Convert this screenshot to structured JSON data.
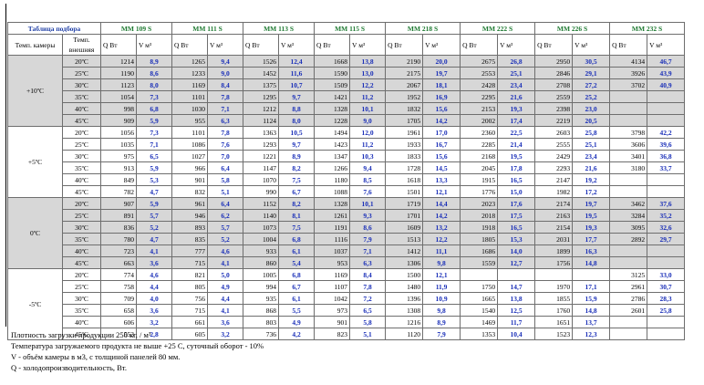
{
  "table": {
    "title": "Таблица подбора",
    "chamber_header": "Темп. камеры",
    "outside_header": "Темп. внешняя",
    "q_header": "Q Вт",
    "v_header": "V м³",
    "models": [
      "MM 109 S",
      "MM 111 S",
      "MM 113 S",
      "MM 115 S",
      "MM 218 S",
      "MM 222 S",
      "MM 226 S",
      "MM 232 S"
    ],
    "groups": [
      {
        "chamber": "+10ºC",
        "rows": [
          {
            "outside": "20ºC",
            "cells": [
              [
                "1214",
                "8,9"
              ],
              [
                "1265",
                "9,4"
              ],
              [
                "1526",
                "12,4"
              ],
              [
                "1668",
                "13,8"
              ],
              [
                "2190",
                "20,0"
              ],
              [
                "2675",
                "26,8"
              ],
              [
                "2950",
                "30,5"
              ],
              [
                "4134",
                "46,7"
              ]
            ]
          },
          {
            "outside": "25ºC",
            "cells": [
              [
                "1190",
                "8,6"
              ],
              [
                "1233",
                "9,0"
              ],
              [
                "1452",
                "11,6"
              ],
              [
                "1590",
                "13,0"
              ],
              [
                "2175",
                "19,7"
              ],
              [
                "2553",
                "25,1"
              ],
              [
                "2846",
                "29,1"
              ],
              [
                "3926",
                "43,9"
              ]
            ]
          },
          {
            "outside": "30ºC",
            "cells": [
              [
                "1123",
                "8,0"
              ],
              [
                "1169",
                "8,4"
              ],
              [
                "1375",
                "10,7"
              ],
              [
                "1509",
                "12,2"
              ],
              [
                "2067",
                "18,1"
              ],
              [
                "2428",
                "23,4"
              ],
              [
                "2708",
                "27,2"
              ],
              [
                "3702",
                "40,9"
              ]
            ]
          },
          {
            "outside": "35ºC",
            "cells": [
              [
                "1054",
                "7,3"
              ],
              [
                "1101",
                "7,8"
              ],
              [
                "1295",
                "9,7"
              ],
              [
                "1421",
                "11,2"
              ],
              [
                "1952",
                "16,9"
              ],
              [
                "2295",
                "21,6"
              ],
              [
                "2559",
                "25,2"
              ],
              [
                "",
                ""
              ]
            ]
          },
          {
            "outside": "40ºC",
            "cells": [
              [
                "998",
                "6,8"
              ],
              [
                "1030",
                "7,1"
              ],
              [
                "1212",
                "8,8"
              ],
              [
                "1328",
                "10,1"
              ],
              [
                "1832",
                "15,6"
              ],
              [
                "2153",
                "19,3"
              ],
              [
                "2398",
                "23,0"
              ],
              [
                "",
                ""
              ]
            ]
          },
          {
            "outside": "45ºC",
            "cells": [
              [
                "909",
                "5,9"
              ],
              [
                "955",
                "6,3"
              ],
              [
                "1124",
                "8,0"
              ],
              [
                "1228",
                "9,0"
              ],
              [
                "1705",
                "14,2"
              ],
              [
                "2002",
                "17,4"
              ],
              [
                "2219",
                "20,5"
              ],
              [
                "",
                ""
              ]
            ]
          }
        ]
      },
      {
        "chamber": "+5ºC",
        "rows": [
          {
            "outside": "20ºC",
            "cells": [
              [
                "1056",
                "7,3"
              ],
              [
                "1101",
                "7,8"
              ],
              [
                "1363",
                "10,5"
              ],
              [
                "1494",
                "12,0"
              ],
              [
                "1961",
                "17,0"
              ],
              [
                "2360",
                "22,5"
              ],
              [
                "2603",
                "25,8"
              ],
              [
                "3798",
                "42,2"
              ]
            ]
          },
          {
            "outside": "25ºC",
            "cells": [
              [
                "1035",
                "7,1"
              ],
              [
                "1086",
                "7,6"
              ],
              [
                "1293",
                "9,7"
              ],
              [
                "1423",
                "11,2"
              ],
              [
                "1933",
                "16,7"
              ],
              [
                "2285",
                "21,4"
              ],
              [
                "2555",
                "25,1"
              ],
              [
                "3606",
                "39,6"
              ]
            ]
          },
          {
            "outside": "30ºC",
            "cells": [
              [
                "975",
                "6,5"
              ],
              [
                "1027",
                "7,0"
              ],
              [
                "1221",
                "8,9"
              ],
              [
                "1347",
                "10,3"
              ],
              [
                "1833",
                "15,6"
              ],
              [
                "2168",
                "19,5"
              ],
              [
                "2429",
                "23,4"
              ],
              [
                "3401",
                "36,8"
              ]
            ]
          },
          {
            "outside": "35ºC",
            "cells": [
              [
                "913",
                "5,9"
              ],
              [
                "966",
                "6,4"
              ],
              [
                "1147",
                "8,2"
              ],
              [
                "1266",
                "9,4"
              ],
              [
                "1728",
                "14,5"
              ],
              [
                "2045",
                "17,8"
              ],
              [
                "2293",
                "21,6"
              ],
              [
                "3180",
                "33,7"
              ]
            ]
          },
          {
            "outside": "40ºC",
            "cells": [
              [
                "849",
                "5,3"
              ],
              [
                "901",
                "5,8"
              ],
              [
                "1070",
                "7,5"
              ],
              [
                "1180",
                "8,5"
              ],
              [
                "1618",
                "13,3"
              ],
              [
                "1915",
                "16,5"
              ],
              [
                "2147",
                "19,2"
              ],
              [
                "",
                ""
              ]
            ]
          },
          {
            "outside": "45ºC",
            "cells": [
              [
                "782",
                "4,7"
              ],
              [
                "832",
                "5,1"
              ],
              [
                "990",
                "6,7"
              ],
              [
                "1088",
                "7,6"
              ],
              [
                "1501",
                "12,1"
              ],
              [
                "1776",
                "15,0"
              ],
              [
                "1982",
                "17,2"
              ],
              [
                "",
                ""
              ]
            ]
          }
        ]
      },
      {
        "chamber": "0ºC",
        "rows": [
          {
            "outside": "20ºC",
            "cells": [
              [
                "907",
                "5,9"
              ],
              [
                "961",
                "6,4"
              ],
              [
                "1152",
                "8,2"
              ],
              [
                "1328",
                "10,1"
              ],
              [
                "1719",
                "14,4"
              ],
              [
                "2023",
                "17,6"
              ],
              [
                "2174",
                "19,7"
              ],
              [
                "3462",
                "37,6"
              ]
            ]
          },
          {
            "outside": "25ºC",
            "cells": [
              [
                "891",
                "5,7"
              ],
              [
                "946",
                "6,2"
              ],
              [
                "1140",
                "8,1"
              ],
              [
                "1261",
                "9,3"
              ],
              [
                "1701",
                "14,2"
              ],
              [
                "2018",
                "17,5"
              ],
              [
                "2163",
                "19,5"
              ],
              [
                "3284",
                "35,2"
              ]
            ]
          },
          {
            "outside": "30ºC",
            "cells": [
              [
                "836",
                "5,2"
              ],
              [
                "893",
                "5,7"
              ],
              [
                "1073",
                "7,5"
              ],
              [
                "1191",
                "8,6"
              ],
              [
                "1609",
                "13,2"
              ],
              [
                "1918",
                "16,5"
              ],
              [
                "2154",
                "19,3"
              ],
              [
                "3095",
                "32,6"
              ]
            ]
          },
          {
            "outside": "35ºC",
            "cells": [
              [
                "780",
                "4,7"
              ],
              [
                "835",
                "5,2"
              ],
              [
                "1004",
                "6,8"
              ],
              [
                "1116",
                "7,9"
              ],
              [
                "1513",
                "12,2"
              ],
              [
                "1805",
                "15,3"
              ],
              [
                "2031",
                "17,7"
              ],
              [
                "2892",
                "29,7"
              ]
            ]
          },
          {
            "outside": "40ºC",
            "cells": [
              [
                "723",
                "4,1"
              ],
              [
                "777",
                "4,6"
              ],
              [
                "933",
                "6,1"
              ],
              [
                "1037",
                "7,1"
              ],
              [
                "1412",
                "11,1"
              ],
              [
                "1686",
                "14,0"
              ],
              [
                "1899",
                "16,3"
              ],
              [
                "",
                ""
              ]
            ]
          },
          {
            "outside": "45ºC",
            "cells": [
              [
                "663",
                "3,6"
              ],
              [
                "715",
                "4,1"
              ],
              [
                "860",
                "5,4"
              ],
              [
                "953",
                "6,3"
              ],
              [
                "1306",
                "9,8"
              ],
              [
                "1559",
                "12,7"
              ],
              [
                "1756",
                "14,8"
              ],
              [
                "",
                ""
              ]
            ]
          }
        ]
      },
      {
        "chamber": "-5ºC",
        "rows": [
          {
            "outside": "20ºC",
            "cells": [
              [
                "774",
                "4,6"
              ],
              [
                "821",
                "5,0"
              ],
              [
                "1005",
                "6,8"
              ],
              [
                "1169",
                "8,4"
              ],
              [
                "1500",
                "12,1"
              ],
              [
                "",
                ""
              ],
              [
                "",
                ""
              ],
              [
                "3125",
                "33,0"
              ]
            ]
          },
          {
            "outside": "25ºC",
            "cells": [
              [
                "758",
                "4,4"
              ],
              [
                "805",
                "4,9"
              ],
              [
                "994",
                "6,7"
              ],
              [
                "1107",
                "7,8"
              ],
              [
                "1480",
                "11,9"
              ],
              [
                "1750",
                "14,7"
              ],
              [
                "1970",
                "17,1"
              ],
              [
                "2961",
                "30,7"
              ]
            ]
          },
          {
            "outside": "30ºC",
            "cells": [
              [
                "709",
                "4,0"
              ],
              [
                "756",
                "4,4"
              ],
              [
                "935",
                "6,1"
              ],
              [
                "1042",
                "7,2"
              ],
              [
                "1396",
                "10,9"
              ],
              [
                "1665",
                "13,8"
              ],
              [
                "1855",
                "15,9"
              ],
              [
                "2786",
                "28,3"
              ]
            ]
          },
          {
            "outside": "35ºC",
            "cells": [
              [
                "658",
                "3,6"
              ],
              [
                "715",
                "4,1"
              ],
              [
                "868",
                "5,5"
              ],
              [
                "973",
                "6,5"
              ],
              [
                "1308",
                "9,8"
              ],
              [
                "1540",
                "12,5"
              ],
              [
                "1760",
                "14,8"
              ],
              [
                "2601",
                "25,8"
              ]
            ]
          },
          {
            "outside": "40ºC",
            "cells": [
              [
                "606",
                "3,2"
              ],
              [
                "661",
                "3,6"
              ],
              [
                "803",
                "4,9"
              ],
              [
                "901",
                "5,8"
              ],
              [
                "1216",
                "8,9"
              ],
              [
                "1469",
                "11,7"
              ],
              [
                "1651",
                "13,7"
              ],
              [
                "",
                ""
              ]
            ]
          },
          {
            "outside": "45ºC",
            "cells": [
              [
                "553",
                "2,8"
              ],
              [
                "605",
                "3,2"
              ],
              [
                "736",
                "4,2"
              ],
              [
                "823",
                "5,1"
              ],
              [
                "1120",
                "7,9"
              ],
              [
                "1353",
                "10,4"
              ],
              [
                "1523",
                "12,3"
              ],
              [
                "",
                ""
              ]
            ]
          }
        ]
      }
    ]
  },
  "notes": [
    "Плотность загрузки продукции 250 кг. / м³",
    "Температура загружаемого продукта не выше +25 С, суточный оборот - 10%",
    "V - объём камеры в м3, с толщиной панелей 80 мм.",
    "Q - холодопроизводительность, Вт."
  ],
  "colors": {
    "title": "#1f3fa5",
    "model": "#1f7a32",
    "volume": "#1a2fb8",
    "shade": "#d7d7d7",
    "border": "#6e6e6e"
  }
}
